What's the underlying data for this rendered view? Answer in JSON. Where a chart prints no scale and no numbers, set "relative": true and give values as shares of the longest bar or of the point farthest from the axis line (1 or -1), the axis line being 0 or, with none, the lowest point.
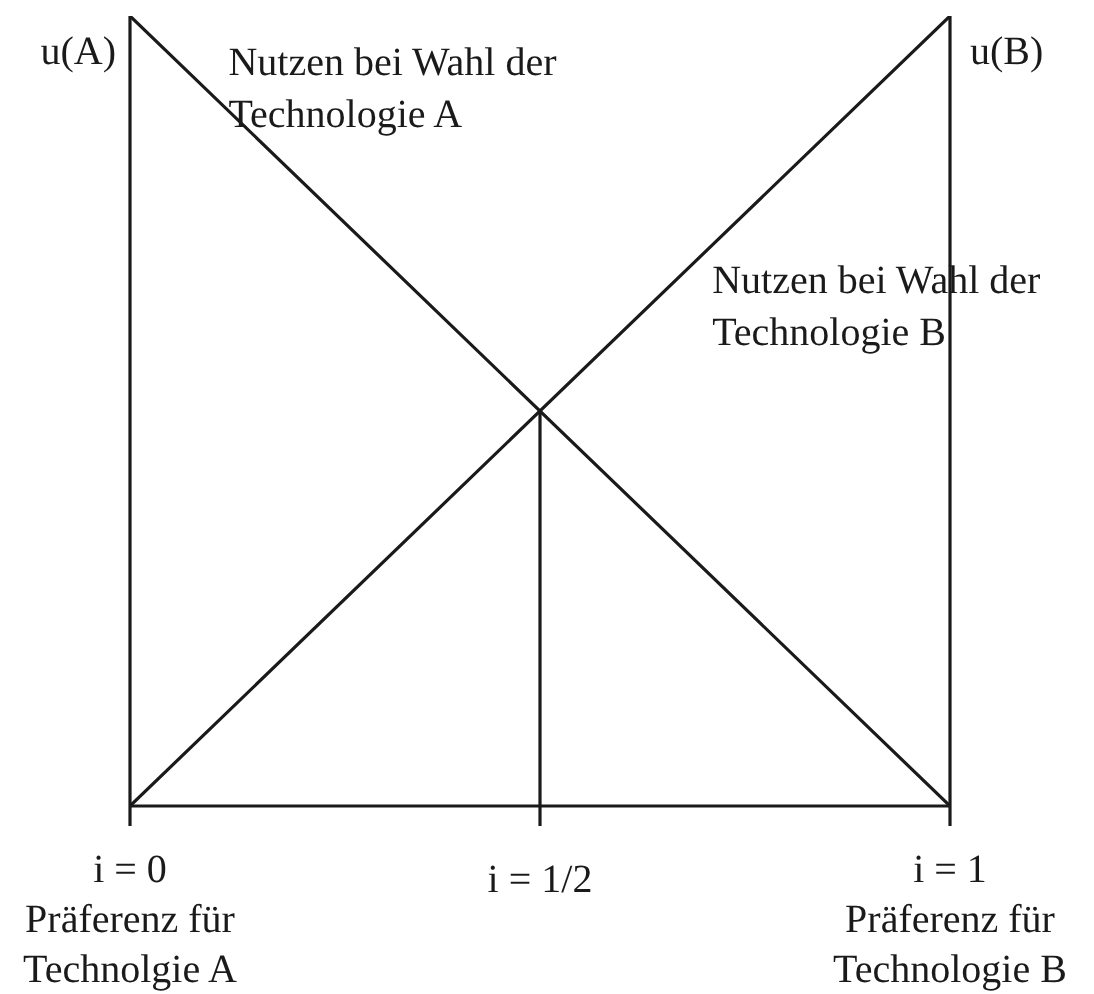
{
  "chart_data": {
    "type": "line",
    "relative": true,
    "ylabel": "u(A)",
    "y2label": "u(B)",
    "x": [
      0,
      1
    ],
    "xlim": [
      0,
      1
    ],
    "xticks": [
      {
        "value": 0,
        "label": "i = 0\nPräferenz für\nTechnolgie A"
      },
      {
        "value": 0.5,
        "label": "i = 1/2"
      },
      {
        "value": 1,
        "label": "i = 1\nPräferenz für\nTechnologie B"
      }
    ],
    "series": [
      {
        "name": "Nutzen bei Wahl der Technologie A",
        "color": "#1a1a1a",
        "values": [
          1,
          0
        ]
      },
      {
        "name": "Nutzen bei Wahl der Technologie B",
        "color": "#1a1a1a",
        "values": [
          0,
          1
        ],
        "axis": "y2"
      },
      {
        "color": "#1a1a1a",
        "x": [
          0.5,
          0.5
        ],
        "values": [
          0,
          0.5
        ]
      }
    ],
    "line_style": "solid"
  }
}
